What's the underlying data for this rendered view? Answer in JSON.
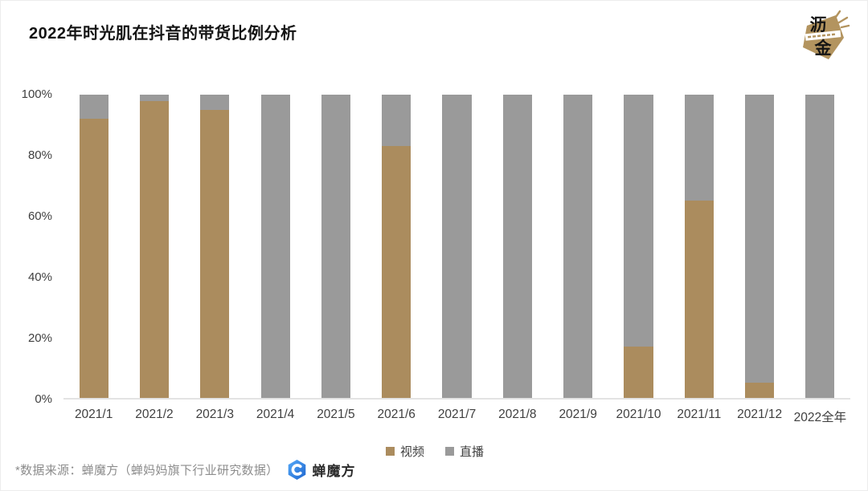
{
  "header": {
    "title": "2022年时光肌在抖音的带货比例分析"
  },
  "lijin_logo": {
    "char_top": "沥",
    "char_bottom": "金",
    "color": "#b3945f"
  },
  "chart_data": {
    "type": "bar",
    "stacked": true,
    "categories": [
      "2021/1",
      "2021/2",
      "2021/3",
      "2021/4",
      "2021/5",
      "2021/6",
      "2021/7",
      "2021/8",
      "2021/9",
      "2021/10",
      "2021/11",
      "2021/12",
      "2022全年"
    ],
    "series": [
      {
        "name": "视频",
        "color": "#ab8c5e",
        "values": [
          92,
          98,
          95,
          0,
          0,
          83,
          0,
          0,
          0,
          17,
          65,
          5,
          0
        ]
      },
      {
        "name": "直播",
        "color": "#9a9a9a",
        "values": [
          8,
          2,
          5,
          100,
          100,
          17,
          100,
          100,
          100,
          83,
          35,
          95,
          100
        ]
      }
    ],
    "title": "2022年时光肌在抖音的带货比例分析",
    "xlabel": "",
    "ylabel": "",
    "ylim": [
      0,
      100
    ],
    "yticks": [
      "0%",
      "20%",
      "40%",
      "60%",
      "80%",
      "100%"
    ],
    "grid": false,
    "legend_position": "bottom"
  },
  "footer": {
    "source_note": "*数据来源：蝉魔方（蝉妈妈旗下行业研究数据）",
    "brand_name": "蝉魔方"
  }
}
